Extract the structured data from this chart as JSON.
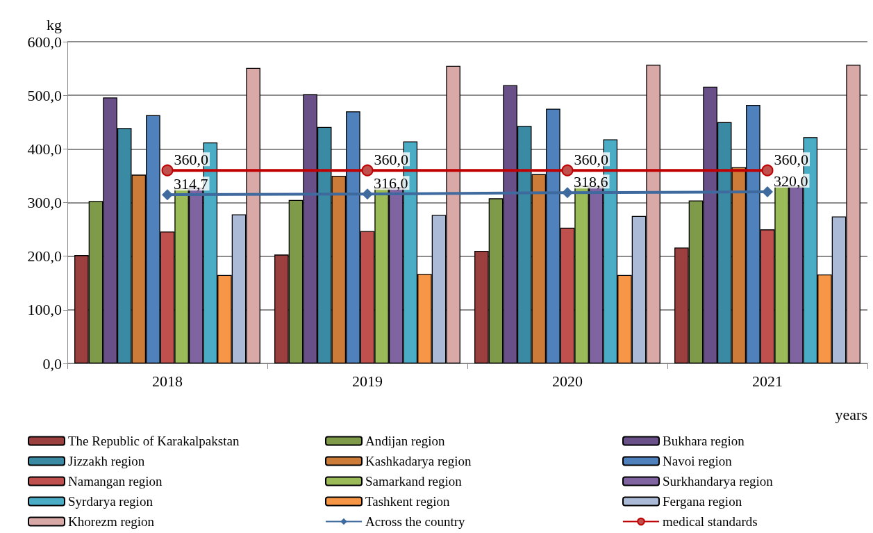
{
  "chart_data": {
    "type": "bar",
    "xlabel": "years",
    "ylabel": "kg",
    "categories": [
      "2018",
      "2019",
      "2020",
      "2021"
    ],
    "ylim": [
      0,
      600
    ],
    "yticks": [
      {
        "value": 0,
        "label": "0,0"
      },
      {
        "value": 100,
        "label": "100,0"
      },
      {
        "value": 200,
        "label": "200,0"
      },
      {
        "value": 300,
        "label": "300,0"
      },
      {
        "value": 400,
        "label": "400,0"
      },
      {
        "value": 500,
        "label": "500,0"
      },
      {
        "value": 600,
        "label": "600,0"
      }
    ],
    "grid": "y",
    "legend": "bottom",
    "series": [
      {
        "name": "The Republic of Karakalpakstan",
        "color": "#9c3f3f",
        "values": [
          202,
          203,
          210,
          216
        ]
      },
      {
        "name": "Andijan region",
        "color": "#7f9a48",
        "values": [
          303,
          305,
          308,
          304
        ]
      },
      {
        "name": "Bukhara region",
        "color": "#6a5088",
        "values": [
          496,
          502,
          519,
          516
        ]
      },
      {
        "name": "Jizzakh region",
        "color": "#3a8aa3",
        "values": [
          439,
          441,
          443,
          450
        ]
      },
      {
        "name": "Kashkadarya region",
        "color": "#cd7b38",
        "values": [
          352,
          350,
          353,
          366
        ]
      },
      {
        "name": "Navoi region",
        "color": "#4f81bd",
        "values": [
          463,
          470,
          475,
          482
        ]
      },
      {
        "name": "Namangan region",
        "color": "#c0504d",
        "values": [
          246,
          247,
          253,
          250
        ]
      },
      {
        "name": "Samarkand region",
        "color": "#9bbb59",
        "values": [
          327,
          328,
          332,
          331
        ]
      },
      {
        "name": "Surkhandarya region",
        "color": "#8064a2",
        "values": [
          328,
          329,
          330,
          330
        ]
      },
      {
        "name": "Syrdarya region",
        "color": "#4bacc6",
        "values": [
          412,
          414,
          418,
          422
        ]
      },
      {
        "name": "Tashkent region",
        "color": "#f79646",
        "values": [
          165,
          167,
          165,
          166
        ]
      },
      {
        "name": "Fergana region",
        "color": "#aabad7",
        "values": [
          278,
          277,
          275,
          274
        ]
      },
      {
        "name": "Khorezm region",
        "color": "#d9a9a8",
        "values": [
          551,
          555,
          557,
          557
        ]
      },
      {
        "name": "Across the country",
        "type": "line",
        "color": "#3e6a9e",
        "marker": "diamond",
        "values": [
          314.7,
          316.0,
          318.6,
          320.0
        ],
        "value_labels": [
          "314,7",
          "316,0",
          "318,6",
          "320,0"
        ]
      },
      {
        "name": "medical standards",
        "type": "line",
        "color": "#c00000",
        "marker": "circle",
        "values": [
          360.0,
          360.0,
          360.0,
          360.0
        ],
        "value_labels": [
          "360,0",
          "360,0",
          "360,0",
          "360,0"
        ]
      }
    ]
  }
}
